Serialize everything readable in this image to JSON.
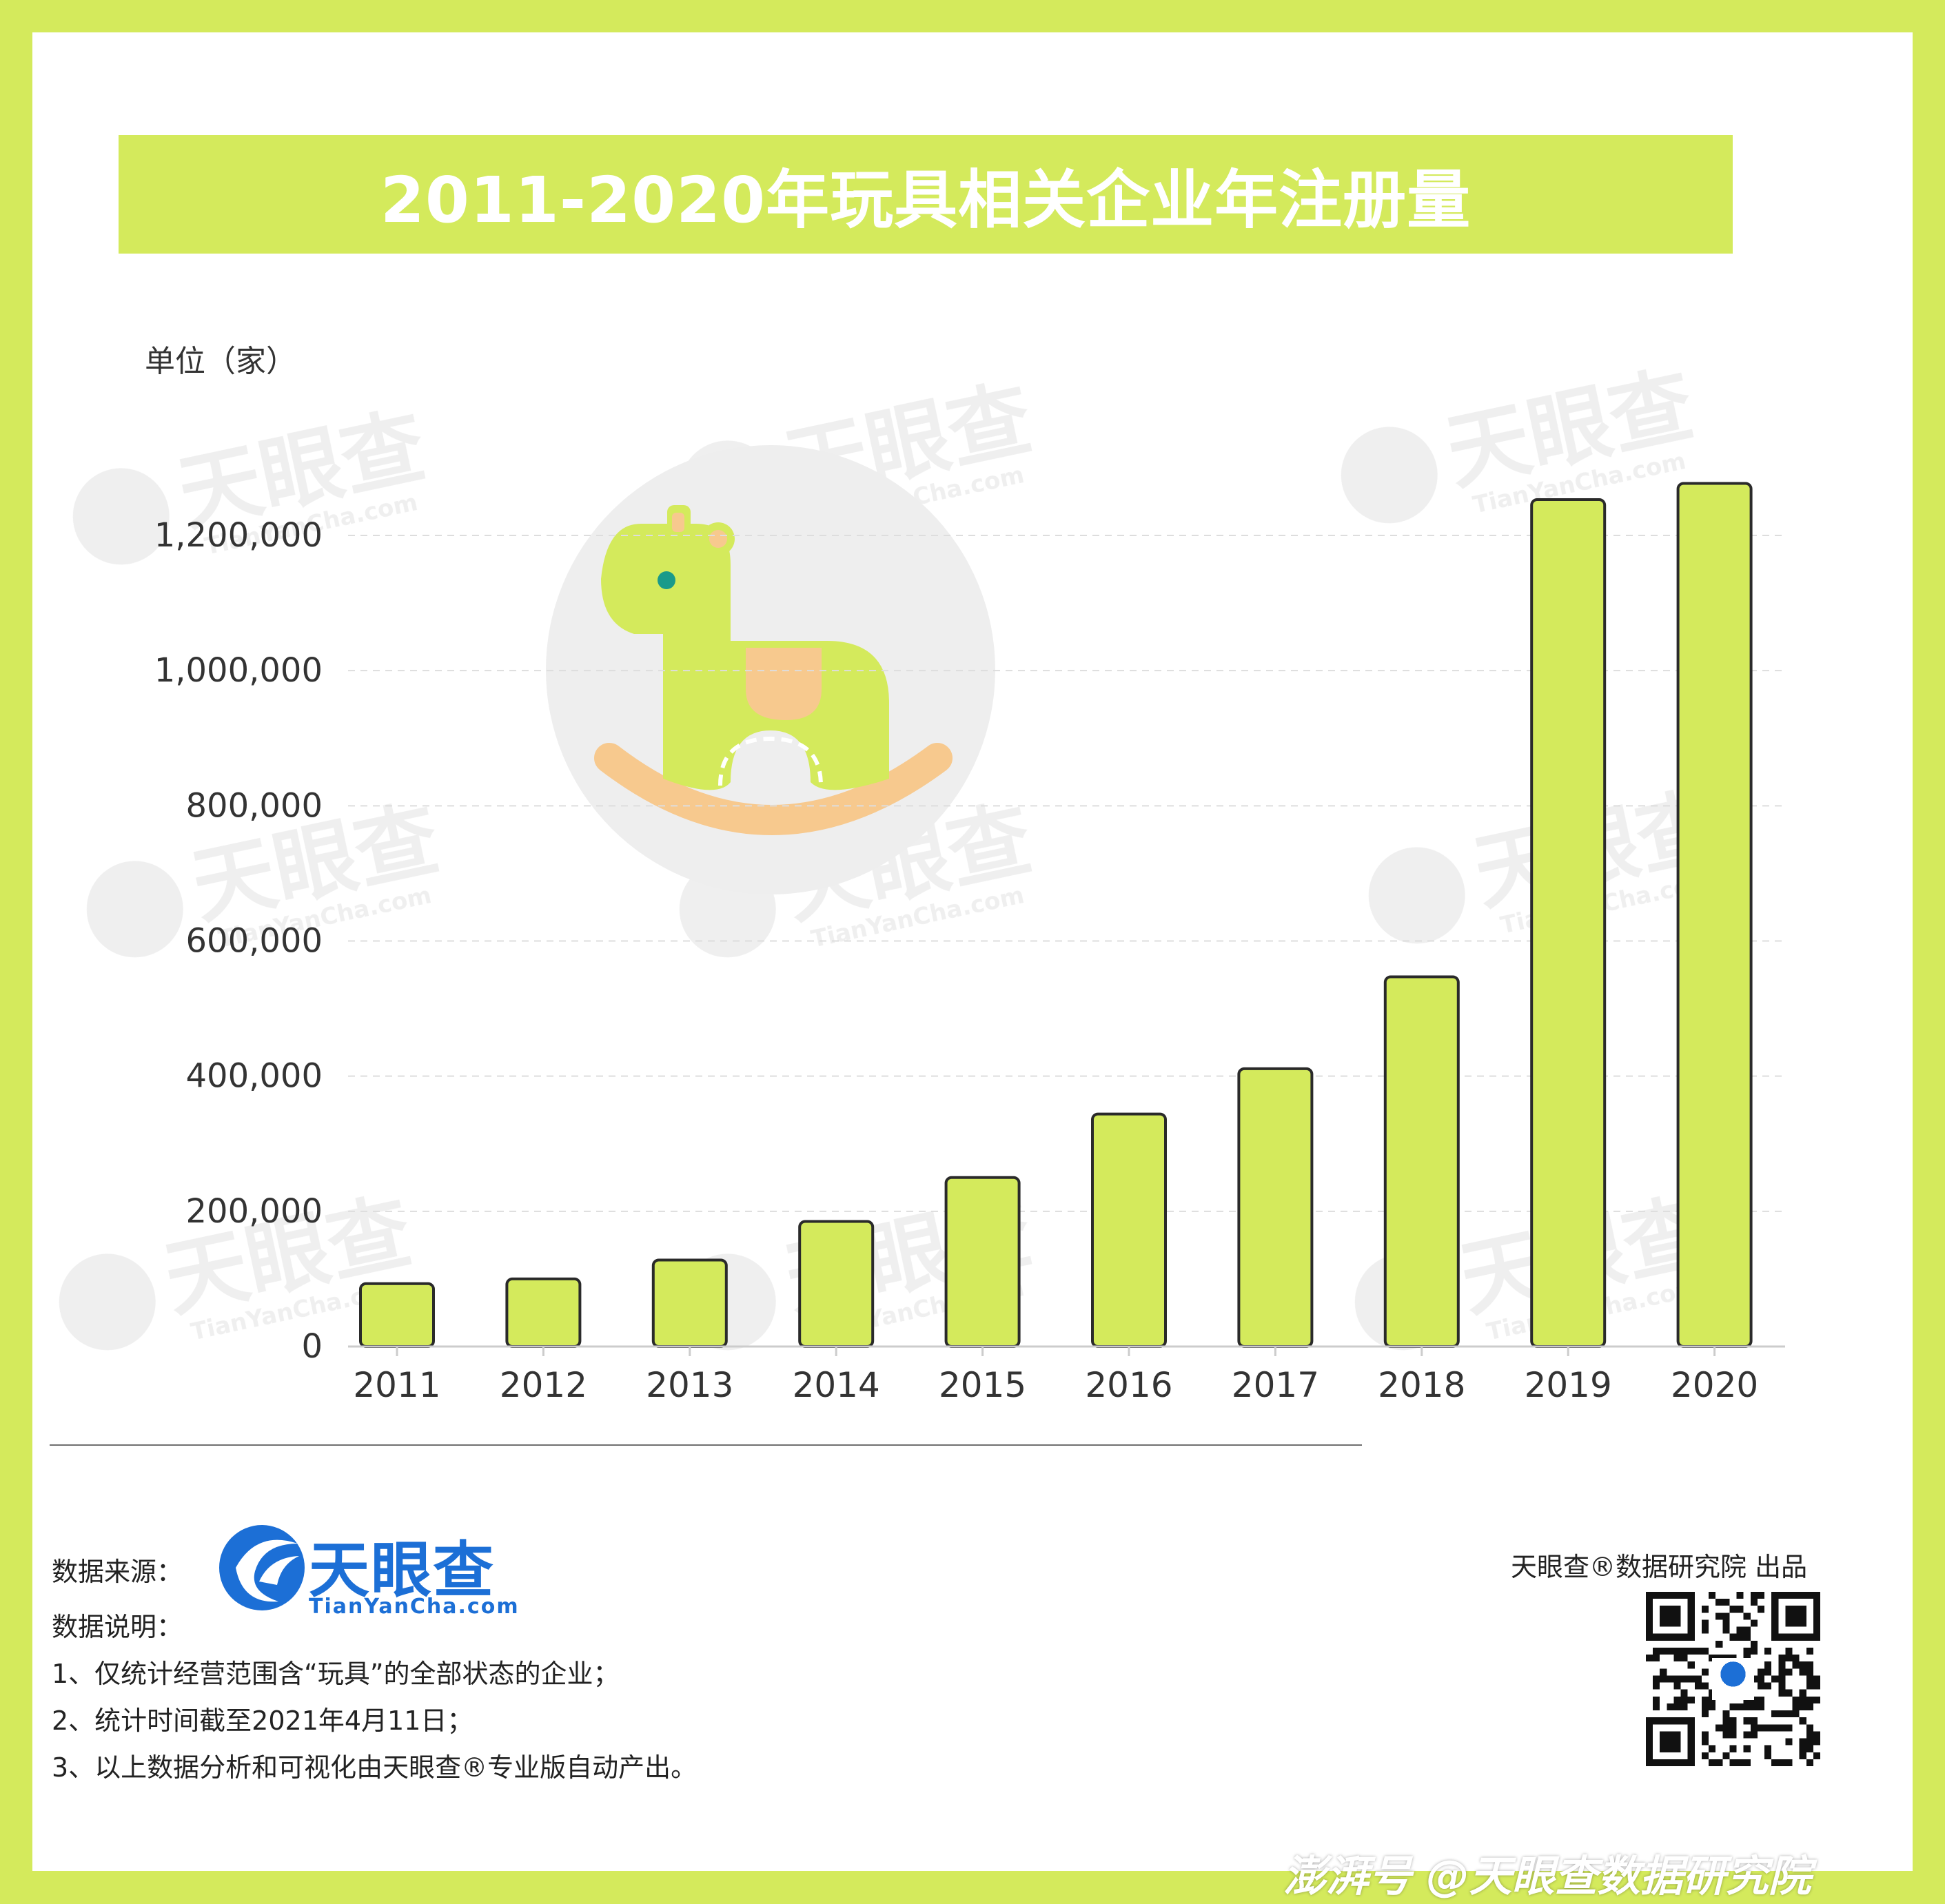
{
  "title": "2011-2020年玩具相关企业年注册量",
  "unit_label": "单位（家）",
  "colors": {
    "background": "#d4ea5c",
    "bar_fill": "#d4ea5c",
    "bar_stroke": "#2a2a2a",
    "brand_blue": "#1c6fd6",
    "grid": "#dddddd"
  },
  "chart_data": {
    "type": "bar",
    "title": "2011-2020年玩具相关企业年注册量",
    "ylabel": "单位（家）",
    "xlabel": "",
    "categories": [
      "2011",
      "2012",
      "2013",
      "2014",
      "2015",
      "2016",
      "2017",
      "2018",
      "2019",
      "2020"
    ],
    "values": [
      93000,
      100000,
      128000,
      185000,
      250000,
      344000,
      411000,
      547000,
      1253000,
      1277000
    ],
    "ylim": [
      0,
      1300000
    ],
    "yticks": [
      0,
      200000,
      400000,
      600000,
      800000,
      1000000,
      1200000
    ],
    "ytick_labels": [
      "0",
      "200,000",
      "400,000",
      "600,000",
      "800,000",
      "1,000,000",
      "1,200,000"
    ],
    "grid": true,
    "grid_style": "dashed horizontal"
  },
  "illustration": {
    "icon": "rocking-horse-icon"
  },
  "watermark": {
    "text_cn": "天眼查",
    "text_en": "TianYanCha.com"
  },
  "footer": {
    "source_label": "数据来源：",
    "brand_cn": "天眼查",
    "brand_url": "TianYanCha.com",
    "notes_heading": "数据说明：",
    "notes": [
      "1、仅统计经营范围含“玩具”的全部状态的企业；",
      "2、统计时间截至2021年4月11日；",
      "3、以上数据分析和可视化由天眼查®专业版自动产出。"
    ],
    "publisher": "天眼查®数据研究院 出品",
    "qr_icon": "qr-code-icon",
    "platform_credit": "澎湃号 @天眼查数据研究院"
  }
}
